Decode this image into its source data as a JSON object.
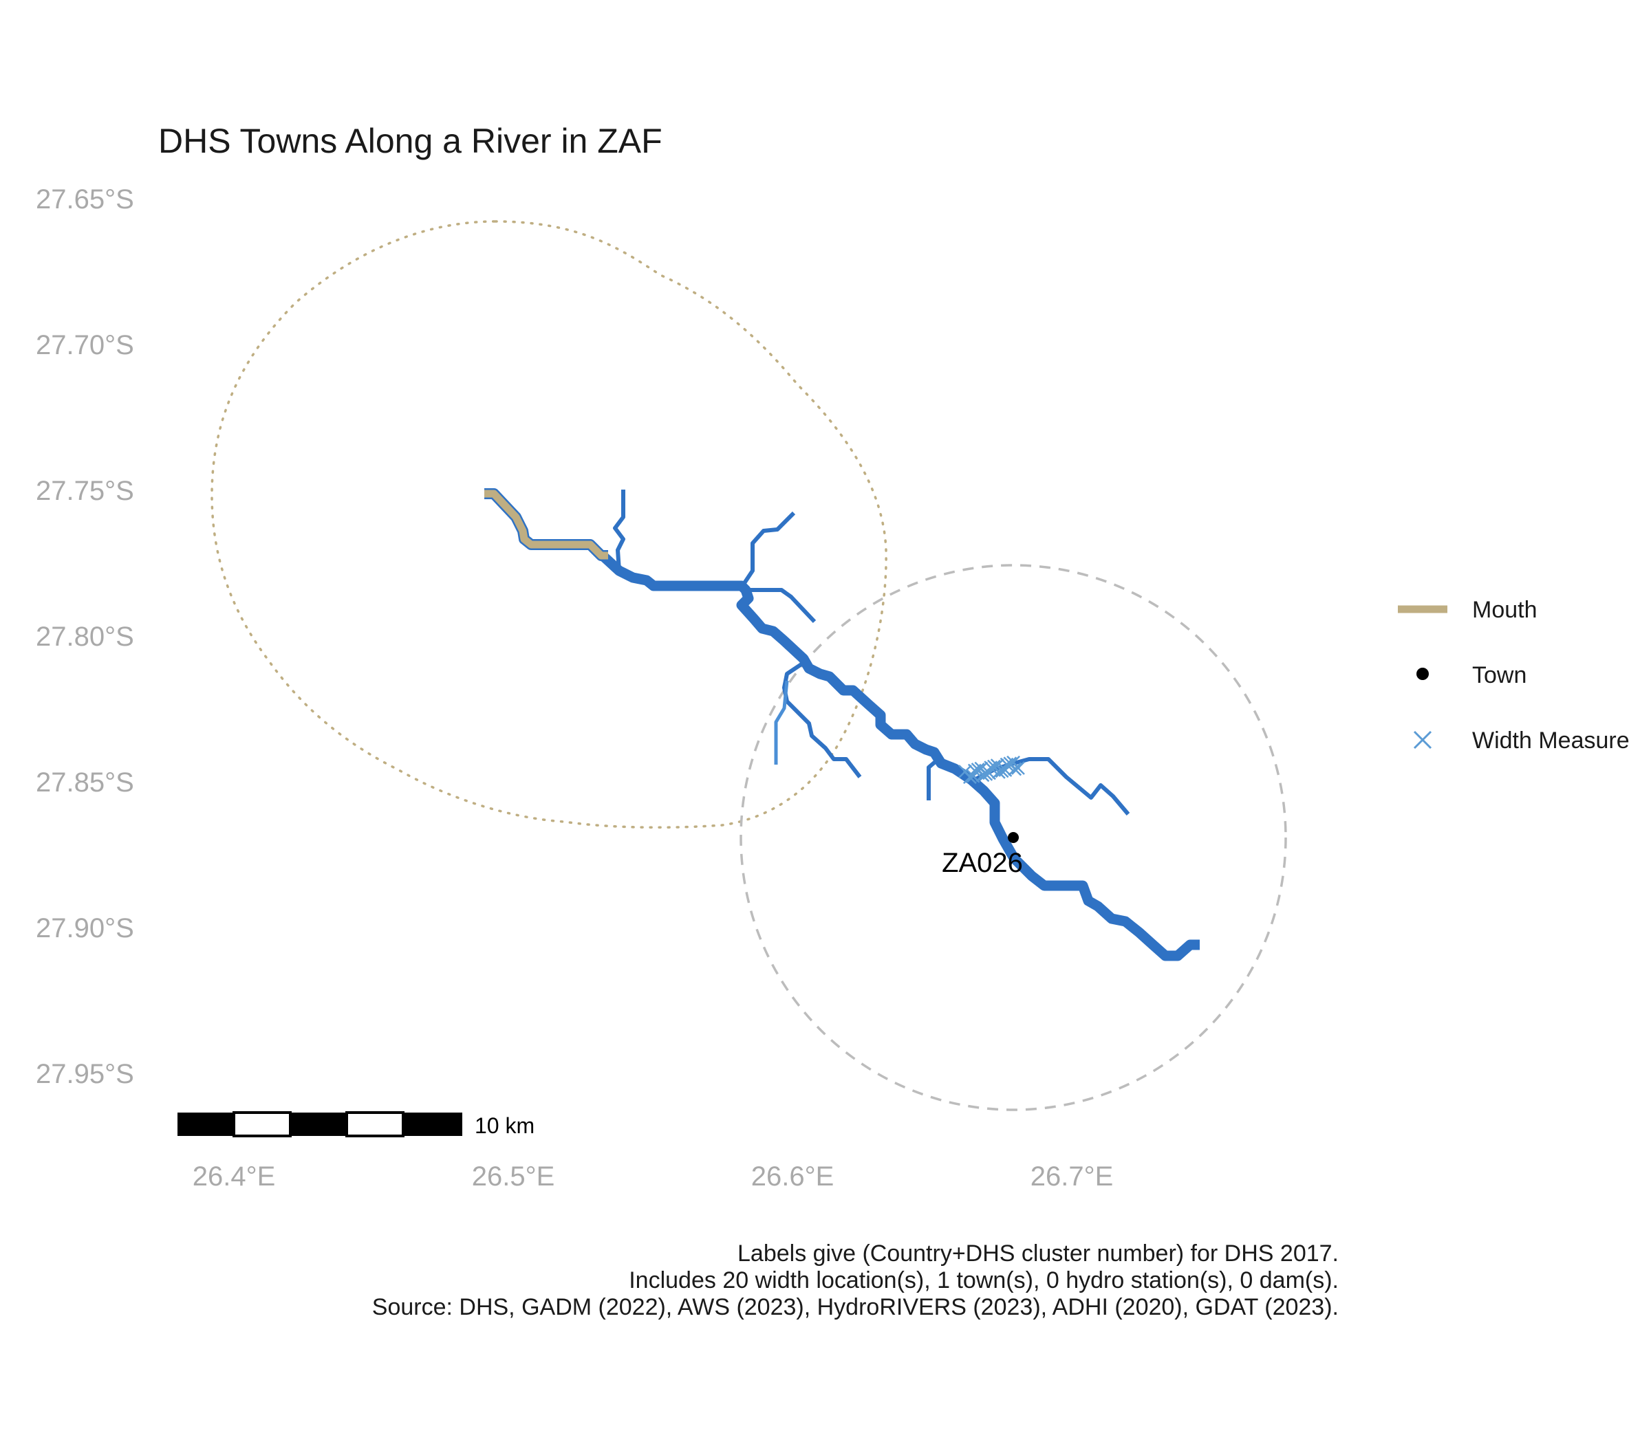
{
  "title": "DHS Towns Along a River in ZAF",
  "axes": {
    "lat_ticks": [
      "27.65°S",
      "27.70°S",
      "27.75°S",
      "27.80°S",
      "27.85°S",
      "27.90°S",
      "27.95°S"
    ],
    "lon_ticks": [
      "26.4°E",
      "26.5°E",
      "26.6°E",
      "26.7°E"
    ]
  },
  "legend": {
    "items": [
      {
        "label": "Mouth",
        "symbol": "line",
        "color": "#bfae82"
      },
      {
        "label": "Town",
        "symbol": "dot",
        "color": "#000000"
      },
      {
        "label": "Width Measure",
        "symbol": "cross",
        "color": "#5b9bd5"
      }
    ]
  },
  "towns": [
    {
      "label": "ZA026",
      "lon": 26.678,
      "lat": -27.869
    }
  ],
  "scale_bar": {
    "label": "10 km"
  },
  "caption": [
    "Labels give (Country+DHS cluster number) for DHS 2017.",
    "Includes 20 width location(s), 1 town(s), 0 hydro station(s), 0 dam(s).",
    "Source: DHS, GADM (2022), AWS (2023), HydroRIVERS (2023), ADHI (2020), GDAT (2023)."
  ],
  "colors": {
    "river": "#2f72c4",
    "river_light": "#4b8fd6",
    "mouth": "#bfae82",
    "width_measure": "#5b9bd5",
    "buffer_mouth": "#bfae82",
    "buffer_town": "#bcbcbc",
    "tick_text": "#a9a9a9"
  },
  "width_measure_count": 20
}
